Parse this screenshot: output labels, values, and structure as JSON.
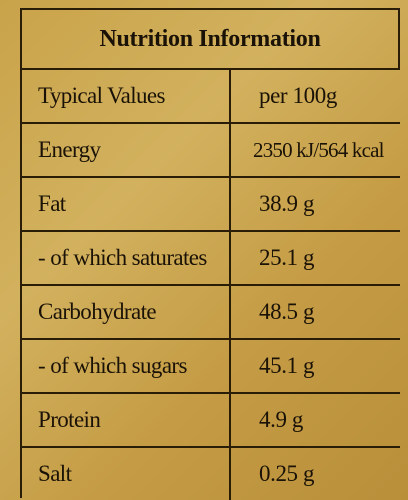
{
  "table": {
    "title": "Nutrition Information",
    "rows": [
      {
        "label": "Typical Values",
        "value": "per 100g"
      },
      {
        "label": "Energy",
        "value": "2350 kJ/564 kcal"
      },
      {
        "label": "Fat",
        "value": "38.9 g"
      },
      {
        "label": "- of which saturates",
        "value": "25.1 g"
      },
      {
        "label": "Carbohydrate",
        "value": "48.5 g"
      },
      {
        "label": "- of which sugars",
        "value": "45.1 g"
      },
      {
        "label": "Protein",
        "value": "4.9 g"
      },
      {
        "label": "Salt",
        "value": "0.25 g"
      }
    ]
  }
}
